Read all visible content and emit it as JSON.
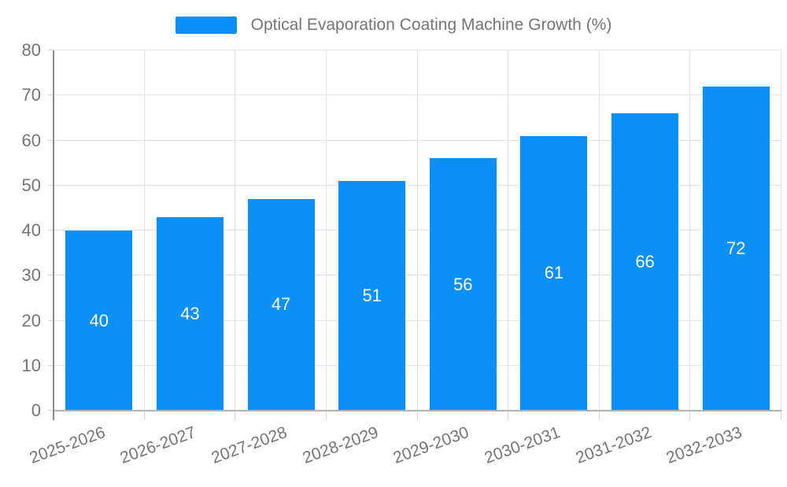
{
  "legend": {
    "label": "Optical Evaporation Coating Machine Growth (%)"
  },
  "chart_data": {
    "type": "bar",
    "title": "Optical Evaporation Coating Machine Growth (%)",
    "categories": [
      "2025-2026",
      "2026-2027",
      "2027-2028",
      "2028-2029",
      "2029-2030",
      "2030-2031",
      "2031-2032",
      "2032-2033"
    ],
    "values": [
      40,
      43,
      47,
      51,
      56,
      61,
      66,
      72
    ],
    "xlabel": "",
    "ylabel": "",
    "ylim": [
      0,
      80
    ],
    "yticks": [
      0,
      10,
      20,
      30,
      40,
      50,
      60,
      70,
      80
    ],
    "grid": true,
    "legend_position": "top-center",
    "x_label_rotation_deg": -20,
    "colors": {
      "bar": "#0a90f8",
      "value_label": "#ffffff",
      "axis_text": "#757575",
      "grid_line": "#e3e3e3",
      "tick_line": "#d6d6d6",
      "axis_line": "#b3b3b3",
      "y_spine": "#8c8c8c",
      "background": "#ffffff"
    }
  }
}
